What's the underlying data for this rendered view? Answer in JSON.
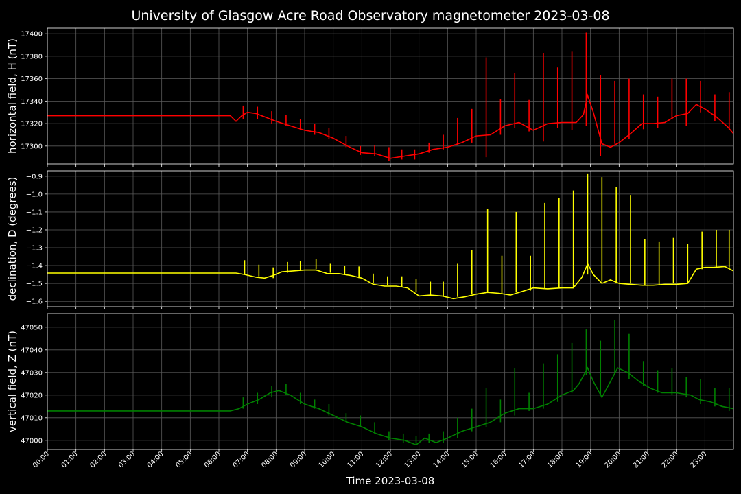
{
  "title": "University of Glasgow Acre Road Observatory magnetometer 2023-03-08",
  "xlabel": "Time 2023-03-08",
  "x_ticks": [
    "00:00",
    "01:00",
    "02:00",
    "03:00",
    "04:00",
    "05:00",
    "06:00",
    "07:00",
    "08:00",
    "09:00",
    "10:00",
    "11:00",
    "12:00",
    "13:00",
    "14:00",
    "15:00",
    "16:00",
    "17:00",
    "18:00",
    "19:00",
    "20:00",
    "21:00",
    "22:00",
    "23:00"
  ],
  "chart_data": [
    {
      "type": "line",
      "ylabel": "horizontal field, H (nT)",
      "color": "#ff0000",
      "xlim": [
        0,
        24
      ],
      "ylim": [
        17284,
        17405
      ],
      "yticks": [
        17300,
        17320,
        17340,
        17360,
        17380,
        17400
      ],
      "ytick_labels": [
        "17300",
        "17320",
        "17340",
        "17360",
        "17380",
        "17400"
      ],
      "x_hours": [
        0,
        6.4,
        6.6,
        6.8,
        7.0,
        7.3,
        7.6,
        8.0,
        8.5,
        9.0,
        9.5,
        10.0,
        10.5,
        11.0,
        11.5,
        12.0,
        12.5,
        13.0,
        13.5,
        14.0,
        14.5,
        15.0,
        15.5,
        16.0,
        16.5,
        17.0,
        17.5,
        18.0,
        18.5,
        18.75,
        18.9,
        19.1,
        19.4,
        19.7,
        20.0,
        20.4,
        20.8,
        21.2,
        21.6,
        22.0,
        22.4,
        22.7,
        23.0,
        23.4,
        23.8,
        24.0
      ],
      "values": [
        17327,
        17327,
        17322,
        17327,
        17330,
        17329,
        17326,
        17322,
        17318,
        17314,
        17312,
        17307,
        17300,
        17294,
        17293,
        17289,
        17291,
        17293,
        17297,
        17299,
        17303,
        17309,
        17310,
        17318,
        17321,
        17314,
        17320,
        17321,
        17321,
        17328,
        17345,
        17330,
        17302,
        17299,
        17303,
        17311,
        17320,
        17320,
        17321,
        17327,
        17329,
        17337,
        17333,
        17326,
        17317,
        17311
      ],
      "spikes": [
        [
          6.85,
          17336,
          17324
        ],
        [
          7.35,
          17335,
          17324
        ],
        [
          7.85,
          17331,
          17320
        ],
        [
          8.35,
          17328,
          17318
        ],
        [
          8.85,
          17324,
          17314
        ],
        [
          9.35,
          17320,
          17310
        ],
        [
          9.85,
          17316,
          17306
        ],
        [
          10.45,
          17309,
          17299
        ],
        [
          10.95,
          17300,
          17292
        ],
        [
          11.45,
          17301,
          17291
        ],
        [
          11.95,
          17299,
          17287
        ],
        [
          12.4,
          17297,
          17288
        ],
        [
          12.85,
          17297,
          17288
        ],
        [
          13.35,
          17303,
          17294
        ],
        [
          13.85,
          17310,
          17297
        ],
        [
          14.35,
          17325,
          17301
        ],
        [
          14.85,
          17333,
          17303
        ],
        [
          15.35,
          17379,
          17290
        ],
        [
          15.85,
          17342,
          17310
        ],
        [
          16.35,
          17365,
          17316
        ],
        [
          16.85,
          17341,
          17313
        ],
        [
          17.35,
          17383,
          17304
        ],
        [
          17.85,
          17370,
          17316
        ],
        [
          18.35,
          17384,
          17314
        ],
        [
          18.85,
          17401,
          17318
        ],
        [
          19.35,
          17363,
          17291
        ],
        [
          19.85,
          17358,
          17302
        ],
        [
          20.35,
          17360,
          17306
        ],
        [
          20.85,
          17346,
          17315
        ],
        [
          21.35,
          17344,
          17316
        ],
        [
          21.85,
          17360,
          17324
        ],
        [
          22.35,
          17360,
          17318
        ],
        [
          22.85,
          17358,
          17330
        ],
        [
          23.35,
          17346,
          17322
        ],
        [
          23.85,
          17348,
          17314
        ]
      ]
    },
    {
      "type": "line",
      "ylabel": "declination, D (degrees)",
      "color": "#ffff00",
      "xlim": [
        0,
        24
      ],
      "ylim": [
        -1.63,
        -0.87
      ],
      "yticks": [
        -1.6,
        -1.5,
        -1.4,
        -1.3,
        -1.2,
        -1.1,
        -1.0,
        -0.9
      ],
      "ytick_labels": [
        "−1.6",
        "−1.5",
        "−1.4",
        "−1.3",
        "−1.2",
        "−1.1",
        "−1.0",
        "−0.9"
      ],
      "x_hours": [
        0,
        6.6,
        6.9,
        7.3,
        7.6,
        7.9,
        8.2,
        8.6,
        9.0,
        9.4,
        9.8,
        10.2,
        10.6,
        11.0,
        11.4,
        11.8,
        12.2,
        12.6,
        13.0,
        13.4,
        13.8,
        14.2,
        14.6,
        15.0,
        15.4,
        15.8,
        16.2,
        16.6,
        17.0,
        17.5,
        18.0,
        18.4,
        18.7,
        18.9,
        19.1,
        19.4,
        19.7,
        20.0,
        20.4,
        20.8,
        21.2,
        21.6,
        22.0,
        22.4,
        22.7,
        23.0,
        23.3,
        23.7,
        24.0
      ],
      "values": [
        -1.442,
        -1.442,
        -1.45,
        -1.465,
        -1.47,
        -1.455,
        -1.435,
        -1.43,
        -1.425,
        -1.425,
        -1.445,
        -1.445,
        -1.455,
        -1.47,
        -1.505,
        -1.515,
        -1.515,
        -1.525,
        -1.57,
        -1.565,
        -1.57,
        -1.585,
        -1.575,
        -1.56,
        -1.55,
        -1.555,
        -1.565,
        -1.545,
        -1.525,
        -1.53,
        -1.525,
        -1.525,
        -1.465,
        -1.39,
        -1.45,
        -1.5,
        -1.48,
        -1.5,
        -1.505,
        -1.51,
        -1.51,
        -1.505,
        -1.505,
        -1.5,
        -1.42,
        -1.41,
        -1.41,
        -1.405,
        -1.43
      ],
      "spikes": [
        [
          6.9,
          -1.37,
          -1.45
        ],
        [
          7.4,
          -1.395,
          -1.46
        ],
        [
          7.9,
          -1.41,
          -1.47
        ],
        [
          8.4,
          -1.38,
          -1.44
        ],
        [
          8.85,
          -1.375,
          -1.43
        ],
        [
          9.4,
          -1.365,
          -1.42
        ],
        [
          9.9,
          -1.39,
          -1.44
        ],
        [
          10.4,
          -1.4,
          -1.45
        ],
        [
          10.9,
          -1.405,
          -1.47
        ],
        [
          11.4,
          -1.445,
          -1.5
        ],
        [
          11.9,
          -1.46,
          -1.51
        ],
        [
          12.4,
          -1.46,
          -1.52
        ],
        [
          12.9,
          -1.475,
          -1.55
        ],
        [
          13.4,
          -1.49,
          -1.57
        ],
        [
          13.85,
          -1.49,
          -1.57
        ],
        [
          14.35,
          -1.39,
          -1.575
        ],
        [
          14.85,
          -1.315,
          -1.56
        ],
        [
          15.4,
          -1.085,
          -1.55
        ],
        [
          15.9,
          -1.345,
          -1.56
        ],
        [
          16.4,
          -1.1,
          -1.55
        ],
        [
          16.9,
          -1.345,
          -1.54
        ],
        [
          17.4,
          -1.05,
          -1.53
        ],
        [
          17.9,
          -1.02,
          -1.525
        ],
        [
          18.4,
          -0.98,
          -1.52
        ],
        [
          18.9,
          -0.885,
          -1.45
        ],
        [
          19.4,
          -0.905,
          -1.49
        ],
        [
          19.9,
          -0.96,
          -1.5
        ],
        [
          20.4,
          -1.005,
          -1.5
        ],
        [
          20.9,
          -1.25,
          -1.51
        ],
        [
          21.4,
          -1.265,
          -1.51
        ],
        [
          21.9,
          -1.245,
          -1.5
        ],
        [
          22.4,
          -1.28,
          -1.5
        ],
        [
          22.9,
          -1.21,
          -1.42
        ],
        [
          23.4,
          -1.2,
          -1.41
        ],
        [
          23.85,
          -1.2,
          -1.41
        ]
      ]
    },
    {
      "type": "line",
      "ylabel": "vertical field, Z (nT)",
      "color": "#008000",
      "xlim": [
        0,
        24
      ],
      "ylim": [
        46996,
        47056
      ],
      "yticks": [
        47000,
        47010,
        47020,
        47030,
        47040,
        47050
      ],
      "ytick_labels": [
        "47000",
        "47010",
        "47020",
        "47030",
        "47040",
        "47050"
      ],
      "x_hours": [
        0,
        6.4,
        6.7,
        7.0,
        7.4,
        7.8,
        8.1,
        8.5,
        9.0,
        9.5,
        10.0,
        10.5,
        11.0,
        11.5,
        12.0,
        12.5,
        12.9,
        13.2,
        13.6,
        14.0,
        14.5,
        15.0,
        15.5,
        16.0,
        16.5,
        17.0,
        17.5,
        18.0,
        18.4,
        18.6,
        18.9,
        19.1,
        19.4,
        19.7,
        19.95,
        20.3,
        20.7,
        21.1,
        21.5,
        22.0,
        22.5,
        22.8,
        23.2,
        23.6,
        24.0
      ],
      "values": [
        47013,
        47013,
        47014,
        47016,
        47018,
        47021,
        47022,
        47020,
        47016,
        47014,
        47011,
        47008,
        47006,
        47003,
        47001,
        47000,
        46998,
        47001,
        46999,
        47001,
        47004,
        47006,
        47008,
        47012,
        47014,
        47014,
        47016,
        47020,
        47022,
        47025,
        47032,
        47026,
        47019,
        47026,
        47032,
        47030,
        47026,
        47023,
        47021,
        47021,
        47020,
        47018,
        47017,
        47015,
        47014
      ],
      "spikes": [
        [
          6.85,
          47019,
          47014
        ],
        [
          7.35,
          47021,
          47016
        ],
        [
          7.85,
          47024,
          47019
        ],
        [
          8.35,
          47025,
          47020
        ],
        [
          8.85,
          47021,
          47016
        ],
        [
          9.35,
          47018,
          47014
        ],
        [
          9.85,
          47016,
          47011
        ],
        [
          10.45,
          47012,
          47008
        ],
        [
          10.95,
          47011,
          47006
        ],
        [
          11.45,
          47008,
          47003
        ],
        [
          11.95,
          47004,
          47000
        ],
        [
          12.45,
          47003,
          46999
        ],
        [
          12.9,
          47002,
          46998
        ],
        [
          13.35,
          47003,
          46999
        ],
        [
          13.85,
          47004,
          46999
        ],
        [
          14.35,
          47010,
          47001
        ],
        [
          14.85,
          47014,
          47004
        ],
        [
          15.35,
          47023,
          47006
        ],
        [
          15.85,
          47018,
          47008
        ],
        [
          16.35,
          47032,
          47011
        ],
        [
          16.85,
          47021,
          47013
        ],
        [
          17.35,
          47034,
          47014
        ],
        [
          17.85,
          47038,
          47017
        ],
        [
          18.35,
          47043,
          47021
        ],
        [
          18.85,
          47049,
          47029
        ],
        [
          19.35,
          47044,
          47020
        ],
        [
          19.85,
          47053,
          47030
        ],
        [
          20.35,
          47047,
          47027
        ],
        [
          20.85,
          47035,
          47024
        ],
        [
          21.35,
          47031,
          47021
        ],
        [
          21.85,
          47032,
          47020
        ],
        [
          22.35,
          47028,
          47019
        ],
        [
          22.85,
          47027,
          47016
        ],
        [
          23.35,
          47023,
          47015
        ],
        [
          23.85,
          47023,
          47013
        ]
      ]
    }
  ]
}
